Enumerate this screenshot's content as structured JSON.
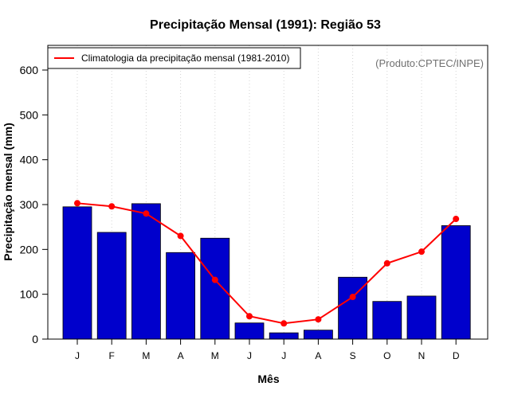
{
  "chart_data": {
    "type": "bar",
    "title": "Precipitação Mensal (1991): Região 53",
    "xlabel": "Mês",
    "ylabel": "Precipitação mensal (mm)",
    "ylim": [
      0,
      650
    ],
    "yticks": [
      0,
      100,
      200,
      300,
      400,
      500,
      600
    ],
    "categories": [
      "J",
      "F",
      "M",
      "A",
      "M",
      "J",
      "J",
      "A",
      "S",
      "O",
      "N",
      "D"
    ],
    "series": [
      {
        "name": "Precipitação mensal 1991",
        "type": "bar",
        "color": "#0000cc",
        "values": [
          295,
          238,
          302,
          193,
          225,
          36,
          14,
          20,
          138,
          84,
          96,
          253
        ]
      },
      {
        "name": "Climatologia da precipitação mensal (1981-2010)",
        "type": "line",
        "color": "#ff0000",
        "values": [
          303,
          296,
          280,
          230,
          132,
          51,
          35,
          44,
          94,
          169,
          195,
          268
        ]
      }
    ],
    "legend": {
      "position": "top-left",
      "entries": [
        "Climatologia da precipitação mensal (1981-2010)"
      ]
    },
    "annotation": "(Produto:CPTEC/INPE)",
    "grid": {
      "vertical_dotted": true
    }
  }
}
